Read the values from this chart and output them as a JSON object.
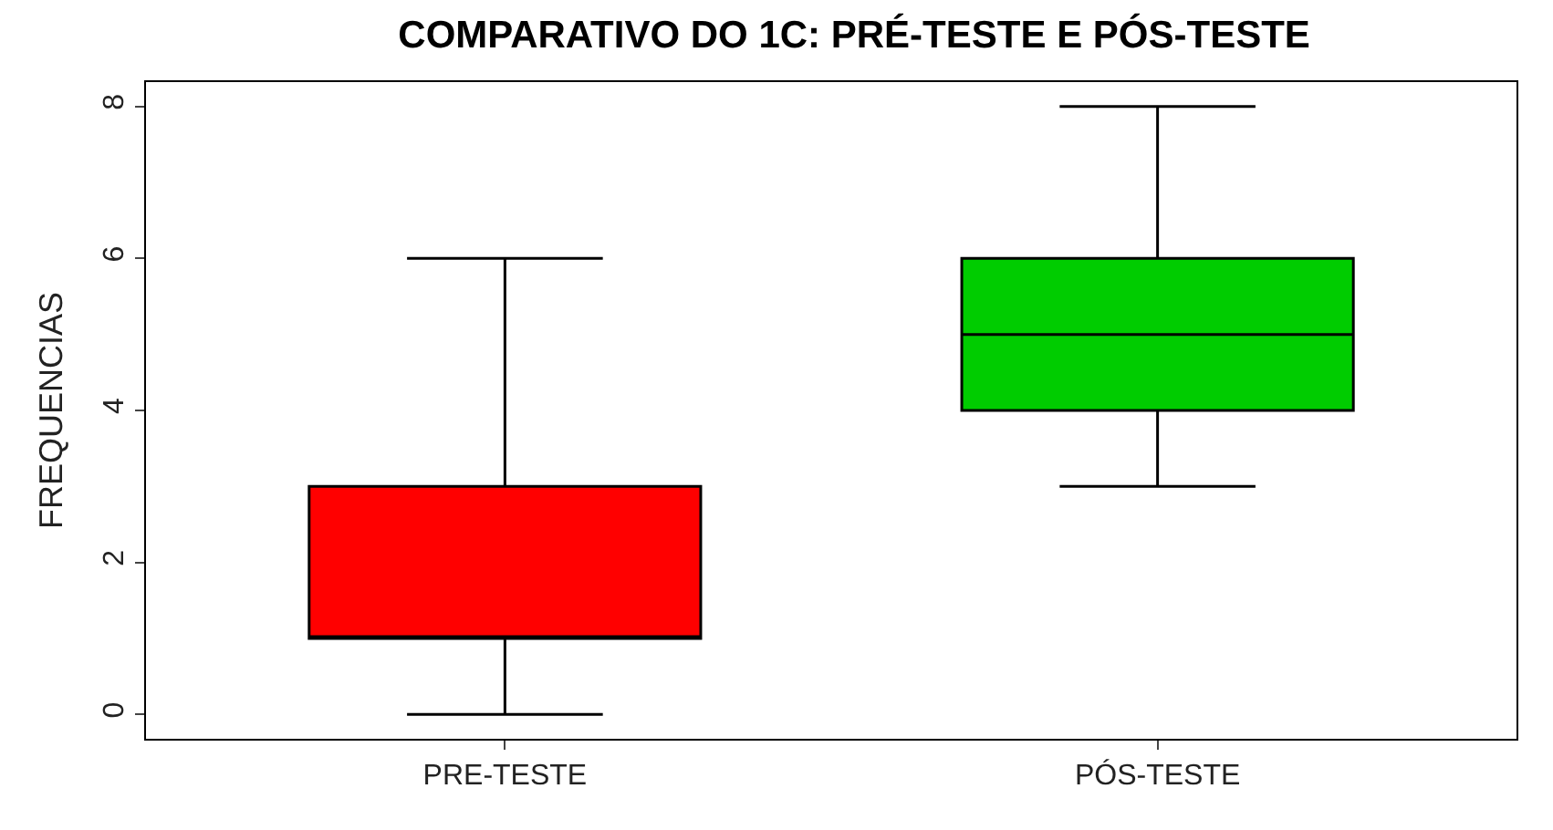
{
  "chart_data": {
    "type": "box",
    "title": "COMPARATIVO DO 1C: PRÉ-TESTE E PÓS-TESTE",
    "ylabel": "FREQUENCIAS",
    "categories": [
      "PRE-TESTE",
      "PÓS-TESTE"
    ],
    "colors": [
      "#ff0000",
      "#00cc00"
    ],
    "boxes": [
      {
        "low": 0,
        "q1": 1,
        "median": 1,
        "q3": 3,
        "high": 6
      },
      {
        "low": 3,
        "q1": 4,
        "median": 5,
        "q3": 6,
        "high": 8
      }
    ],
    "ylim": [
      -0.32,
      8.32
    ],
    "yticks": [
      0,
      2,
      4,
      6,
      8
    ],
    "legend": false
  }
}
